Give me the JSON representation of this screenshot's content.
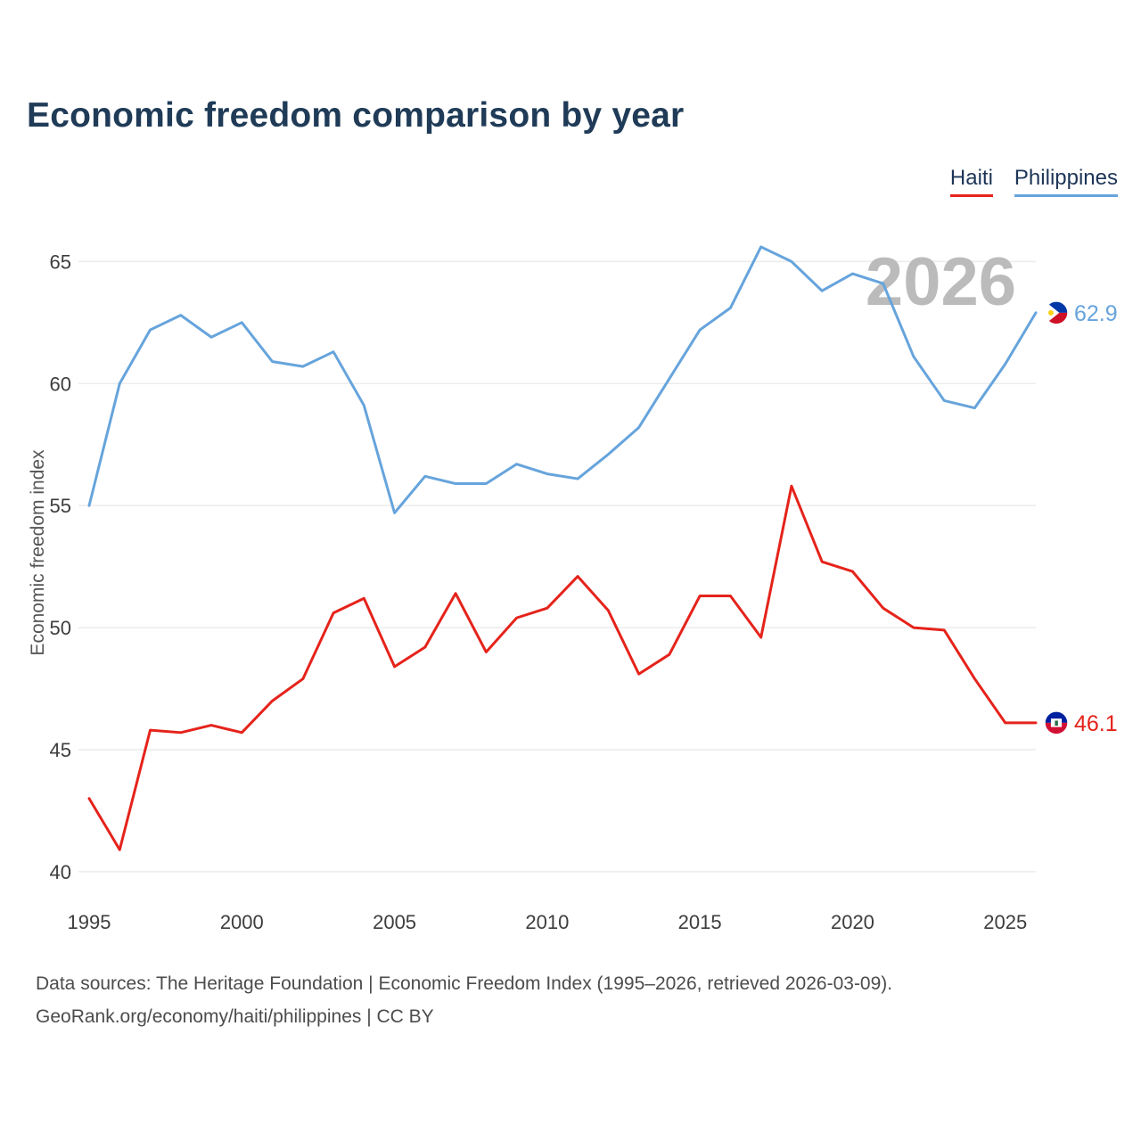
{
  "title": "Economic freedom comparison by year",
  "watermark": "2026",
  "legend": {
    "items": [
      {
        "label": "Haiti",
        "color": "#e5231b"
      },
      {
        "label": "Philippines",
        "color": "#66a4dc"
      }
    ]
  },
  "footer": {
    "line1": "Data sources: The Heritage Foundation | Economic Freedom Index (1995–2026, retrieved 2026-03-09).",
    "line2": "GeoRank.org/economy/haiti/philippines | CC BY"
  },
  "chart_data": {
    "type": "line",
    "title": "Economic freedom comparison by year",
    "xlabel": "",
    "ylabel": "Economic freedom index",
    "x": [
      1995,
      1996,
      1997,
      1998,
      1999,
      2000,
      2001,
      2002,
      2003,
      2004,
      2005,
      2006,
      2007,
      2008,
      2009,
      2010,
      2011,
      2012,
      2013,
      2014,
      2015,
      2016,
      2017,
      2018,
      2019,
      2020,
      2021,
      2022,
      2023,
      2024,
      2025,
      2026
    ],
    "series": [
      {
        "name": "Haiti",
        "color": "#e5231b",
        "end_label": "46.1",
        "flag": "haiti",
        "values": [
          43.0,
          40.9,
          45.8,
          45.7,
          46.0,
          45.7,
          47.0,
          47.9,
          50.6,
          51.2,
          48.4,
          49.2,
          51.4,
          49.0,
          50.4,
          50.8,
          52.1,
          50.7,
          48.1,
          48.9,
          51.3,
          51.3,
          49.6,
          55.8,
          52.7,
          52.3,
          50.8,
          50.0,
          49.9,
          47.9,
          46.1,
          46.1
        ]
      },
      {
        "name": "Philippines",
        "color": "#66a4dc",
        "end_label": "62.9",
        "flag": "philippines",
        "values": [
          55.0,
          60.0,
          62.2,
          62.8,
          61.9,
          62.5,
          60.9,
          60.7,
          61.3,
          59.1,
          54.7,
          56.2,
          55.9,
          55.9,
          56.7,
          56.3,
          56.1,
          57.1,
          58.2,
          60.2,
          62.2,
          63.1,
          65.6,
          65.0,
          63.8,
          64.5,
          64.1,
          61.1,
          59.3,
          59.0,
          60.8,
          62.9
        ]
      }
    ],
    "xticks": [
      1995,
      2000,
      2005,
      2010,
      2015,
      2020,
      2025
    ],
    "yticks": [
      40,
      45,
      50,
      55,
      60,
      65
    ],
    "xlim": [
      1995,
      2026
    ],
    "ylim": [
      38.9,
      66.0
    ],
    "grid": "horizontal",
    "legend_position": "top-right"
  }
}
